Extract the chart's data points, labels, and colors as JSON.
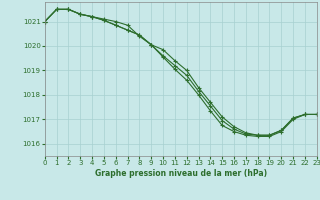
{
  "title": "Graphe pression niveau de la mer (hPa)",
  "background_color": "#c8e8e8",
  "grid_color": "#a8d0d0",
  "line_color": "#2d6e2d",
  "xlim": [
    0,
    23
  ],
  "ylim": [
    1015.5,
    1021.8
  ],
  "yticks": [
    1016,
    1017,
    1018,
    1019,
    1020,
    1021
  ],
  "xticks": [
    0,
    1,
    2,
    3,
    4,
    5,
    6,
    7,
    8,
    9,
    10,
    11,
    12,
    13,
    14,
    15,
    16,
    17,
    18,
    19,
    20,
    21,
    22,
    23
  ],
  "series": [
    [
      1021.0,
      1021.5,
      1021.5,
      1021.3,
      1021.2,
      1021.1,
      1021.0,
      1020.85,
      1020.4,
      1020.05,
      1019.85,
      1019.4,
      1019.0,
      1018.3,
      1017.7,
      1017.1,
      1016.7,
      1016.45,
      1016.35,
      1016.35,
      1016.55,
      1017.05,
      1017.2,
      1017.2
    ],
    [
      1021.0,
      1021.5,
      1021.5,
      1021.3,
      1021.2,
      1021.05,
      1020.85,
      1020.65,
      1020.45,
      1020.05,
      1019.6,
      1019.2,
      1018.8,
      1018.15,
      1017.55,
      1016.95,
      1016.6,
      1016.4,
      1016.35,
      1016.35,
      1016.55,
      1017.05,
      1017.2,
      1017.2
    ],
    [
      1021.0,
      1021.5,
      1021.5,
      1021.3,
      1021.2,
      1021.05,
      1020.85,
      1020.65,
      1020.45,
      1020.05,
      1019.55,
      1019.05,
      1018.6,
      1018.0,
      1017.35,
      1016.75,
      1016.5,
      1016.35,
      1016.3,
      1016.3,
      1016.5,
      1017.0,
      1017.2,
      1017.2
    ]
  ]
}
